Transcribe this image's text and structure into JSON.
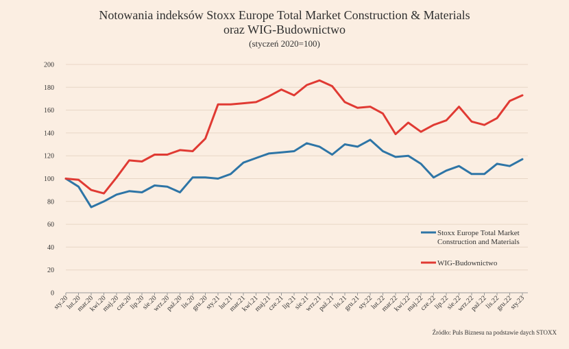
{
  "chart_data": {
    "type": "line",
    "title_lines": [
      "Notowania indeksów Stoxx Europe Total Market Construction & Materials",
      "oraz WIG-Budownictwo"
    ],
    "subtitle": "(styczeń 2020=100)",
    "xlabel": "",
    "ylabel": "",
    "ylim": [
      0,
      200
    ],
    "yticks": [
      0,
      20,
      40,
      60,
      80,
      100,
      120,
      140,
      160,
      180,
      200
    ],
    "grid": true,
    "legend_position": "right",
    "categories": [
      "sty.20",
      "lut.20",
      "mar.20",
      "kwi.20",
      "maj.20",
      "cze.20",
      "lip.20",
      "sie.20",
      "wrz.20",
      "paź.20",
      "lis.20",
      "gru.20",
      "sty.21",
      "lut.21",
      "mar.21",
      "kwi.21",
      "maj.21",
      "cze.21",
      "lip.21",
      "sie.21",
      "wrz.21",
      "paź.21",
      "lis.21",
      "gru.21",
      "sty.22",
      "lut.22",
      "mar.22",
      "kwi.22",
      "maj.22",
      "cze.22",
      "lip.22",
      "sie.22",
      "wrz.22",
      "paź.22",
      "lis.22",
      "gru.22",
      "sty.23"
    ],
    "series": [
      {
        "name": "Stoxx Europe Total Market Construction and Materials",
        "legend_lines": [
          "Stoxx Europe Total Market",
          "Construction and Materials"
        ],
        "color": "#2e75a6",
        "values": [
          100,
          93,
          75,
          80,
          86,
          89,
          88,
          94,
          93,
          88,
          101,
          101,
          100,
          104,
          114,
          118,
          122,
          123,
          124,
          131,
          128,
          121,
          130,
          128,
          134,
          124,
          119,
          120,
          113,
          101,
          107,
          111,
          104,
          104,
          113,
          111,
          117
        ]
      },
      {
        "name": "WIG-Budownictwo",
        "legend_lines": [
          "WIG-Budownictwo"
        ],
        "color": "#e03a33",
        "values": [
          100,
          99,
          90,
          87,
          101,
          116,
          115,
          121,
          121,
          125,
          124,
          135,
          165,
          165,
          166,
          167,
          172,
          178,
          173,
          182,
          186,
          181,
          167,
          162,
          163,
          157,
          139,
          149,
          141,
          147,
          151,
          163,
          150,
          147,
          153,
          168,
          173
        ]
      }
    ]
  },
  "source": "Źródło: Puls Biznesu na podstawie daych STOXX"
}
